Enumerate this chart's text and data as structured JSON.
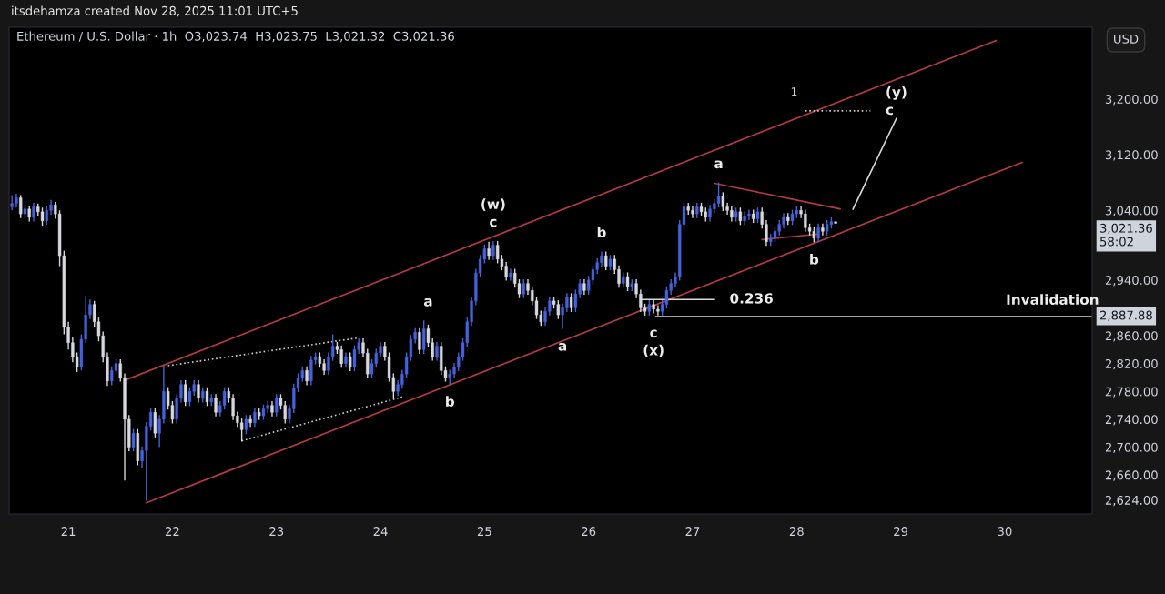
{
  "chart_data": {
    "type": "candlestick",
    "title": "itsdehamza created Nov 28, 2025 11:01 UTC+5",
    "subtitle": "Ethereum / U.S. Dollar · 1h  O3,023.74  H3,023.75  L3,021.32  C3,021.36",
    "series": [
      {
        "type": "candlestick",
        "x": [
          "2025-11-20T11:00",
          "2025-11-20T12:00",
          "2025-11-20T13:00",
          "2025-11-20T14:00",
          "2025-11-20T15:00",
          "2025-11-20T16:00",
          "2025-11-20T17:00",
          "2025-11-20T18:00",
          "2025-11-20T19:00",
          "2025-11-20T20:00",
          "2025-11-20T21:00",
          "2025-11-20T22:00",
          "2025-11-20T23:00",
          "2025-11-21T00:00",
          "2025-11-21T01:00",
          "2025-11-21T02:00",
          "2025-11-21T03:00",
          "2025-11-21T04:00",
          "2025-11-21T05:00",
          "2025-11-21T06:00",
          "2025-11-21T07:00",
          "2025-11-21T08:00",
          "2025-11-21T09:00",
          "2025-11-21T10:00",
          "2025-11-21T11:00",
          "2025-11-21T12:00",
          "2025-11-21T13:00",
          "2025-11-21T14:00",
          "2025-11-21T15:00",
          "2025-11-21T16:00",
          "2025-11-21T17:00",
          "2025-11-21T18:00",
          "2025-11-21T19:00",
          "2025-11-21T20:00",
          "2025-11-21T21:00",
          "2025-11-21T22:00",
          "2025-11-21T23:00",
          "2025-11-22T00:00",
          "2025-11-22T01:00",
          "2025-11-22T02:00",
          "2025-11-22T03:00",
          "2025-11-22T04:00",
          "2025-11-22T05:00",
          "2025-11-22T06:00",
          "2025-11-22T07:00",
          "2025-11-22T08:00",
          "2025-11-22T09:00",
          "2025-11-22T10:00",
          "2025-11-22T11:00",
          "2025-11-22T12:00",
          "2025-11-22T13:00",
          "2025-11-22T14:00",
          "2025-11-22T15:00",
          "2025-11-22T16:00",
          "2025-11-22T17:00",
          "2025-11-22T18:00",
          "2025-11-22T19:00",
          "2025-11-22T20:00",
          "2025-11-22T21:00",
          "2025-11-22T22:00",
          "2025-11-22T23:00",
          "2025-11-23T00:00",
          "2025-11-23T01:00",
          "2025-11-23T02:00",
          "2025-11-23T03:00",
          "2025-11-23T04:00",
          "2025-11-23T05:00",
          "2025-11-23T06:00",
          "2025-11-23T07:00",
          "2025-11-23T08:00",
          "2025-11-23T09:00",
          "2025-11-23T10:00",
          "2025-11-23T11:00",
          "2025-11-23T12:00",
          "2025-11-23T13:00",
          "2025-11-23T14:00",
          "2025-11-23T15:00",
          "2025-11-23T16:00",
          "2025-11-23T17:00",
          "2025-11-23T18:00",
          "2025-11-23T19:00",
          "2025-11-23T20:00",
          "2025-11-23T21:00",
          "2025-11-23T22:00",
          "2025-11-23T23:00",
          "2025-11-24T00:00",
          "2025-11-24T01:00",
          "2025-11-24T02:00",
          "2025-11-24T03:00",
          "2025-11-24T04:00",
          "2025-11-24T05:00",
          "2025-11-24T06:00",
          "2025-11-24T07:00",
          "2025-11-24T08:00",
          "2025-11-24T09:00",
          "2025-11-24T10:00",
          "2025-11-24T11:00",
          "2025-11-24T12:00",
          "2025-11-24T13:00",
          "2025-11-24T14:00",
          "2025-11-24T15:00",
          "2025-11-24T16:00",
          "2025-11-24T17:00",
          "2025-11-24T18:00",
          "2025-11-24T19:00",
          "2025-11-24T20:00",
          "2025-11-24T21:00",
          "2025-11-24T22:00",
          "2025-11-24T23:00",
          "2025-11-25T00:00",
          "2025-11-25T01:00",
          "2025-11-25T02:00",
          "2025-11-25T03:00",
          "2025-11-25T04:00",
          "2025-11-25T05:00",
          "2025-11-25T06:00",
          "2025-11-25T07:00",
          "2025-11-25T08:00",
          "2025-11-25T09:00",
          "2025-11-25T10:00",
          "2025-11-25T11:00",
          "2025-11-25T12:00",
          "2025-11-25T13:00",
          "2025-11-25T14:00",
          "2025-11-25T15:00",
          "2025-11-25T16:00",
          "2025-11-25T17:00",
          "2025-11-25T18:00",
          "2025-11-25T19:00",
          "2025-11-25T20:00",
          "2025-11-25T21:00",
          "2025-11-25T22:00",
          "2025-11-25T23:00",
          "2025-11-26T00:00",
          "2025-11-26T01:00",
          "2025-11-26T02:00",
          "2025-11-26T03:00",
          "2025-11-26T04:00",
          "2025-11-26T05:00",
          "2025-11-26T06:00",
          "2025-11-26T07:00",
          "2025-11-26T08:00",
          "2025-11-26T09:00",
          "2025-11-26T10:00",
          "2025-11-26T11:00",
          "2025-11-26T12:00",
          "2025-11-26T13:00",
          "2025-11-26T14:00",
          "2025-11-26T15:00",
          "2025-11-26T16:00",
          "2025-11-26T17:00",
          "2025-11-26T18:00",
          "2025-11-26T19:00",
          "2025-11-26T20:00",
          "2025-11-26T21:00",
          "2025-11-26T22:00",
          "2025-11-26T23:00",
          "2025-11-27T00:00",
          "2025-11-27T01:00",
          "2025-11-27T02:00",
          "2025-11-27T03:00",
          "2025-11-27T04:00",
          "2025-11-27T05:00",
          "2025-11-27T06:00",
          "2025-11-27T07:00",
          "2025-11-27T08:00",
          "2025-11-27T09:00",
          "2025-11-27T10:00",
          "2025-11-27T11:00",
          "2025-11-27T12:00",
          "2025-11-27T13:00",
          "2025-11-27T14:00",
          "2025-11-27T15:00",
          "2025-11-27T16:00",
          "2025-11-27T17:00",
          "2025-11-27T18:00",
          "2025-11-27T19:00",
          "2025-11-27T20:00",
          "2025-11-27T21:00",
          "2025-11-27T22:00",
          "2025-11-27T23:00",
          "2025-11-28T00:00",
          "2025-11-28T01:00",
          "2025-11-28T02:00",
          "2025-11-28T03:00",
          "2025-11-28T04:00",
          "2025-11-28T05:00",
          "2025-11-28T06:00",
          "2025-11-28T07:00",
          "2025-11-28T08:00",
          "2025-11-28T09:00"
        ],
        "ohlc": [
          [
            3045,
            3062,
            3040,
            3050
          ],
          [
            3050,
            3064,
            3044,
            3058
          ],
          [
            3058,
            3062,
            3029,
            3035
          ],
          [
            3035,
            3048,
            3029,
            3042
          ],
          [
            3042,
            3047,
            3024,
            3030
          ],
          [
            3030,
            3051,
            3024,
            3045
          ],
          [
            3045,
            3050,
            3032,
            3038
          ],
          [
            3038,
            3044,
            3018,
            3025
          ],
          [
            3025,
            3046,
            3019,
            3040
          ],
          [
            3040,
            3055,
            3034,
            3048
          ],
          [
            3048,
            3052,
            3028,
            3035
          ],
          [
            3035,
            3040,
            2960,
            2975
          ],
          [
            2975,
            2982,
            2862,
            2872
          ],
          [
            2872,
            2880,
            2840,
            2850
          ],
          [
            2850,
            2858,
            2822,
            2830
          ],
          [
            2830,
            2836,
            2808,
            2815
          ],
          [
            2815,
            2862,
            2810,
            2855
          ],
          [
            2855,
            2917,
            2850,
            2890
          ],
          [
            2890,
            2912,
            2884,
            2905
          ],
          [
            2905,
            2910,
            2872,
            2880
          ],
          [
            2880,
            2886,
            2852,
            2860
          ],
          [
            2860,
            2866,
            2822,
            2830
          ],
          [
            2830,
            2836,
            2788,
            2795
          ],
          [
            2795,
            2816,
            2789,
            2810
          ],
          [
            2810,
            2826,
            2804,
            2820
          ],
          [
            2820,
            2826,
            2794,
            2800
          ],
          [
            2800,
            2806,
            2652,
            2740
          ],
          [
            2740,
            2746,
            2694,
            2700
          ],
          [
            2700,
            2726,
            2694,
            2720
          ],
          [
            2720,
            2726,
            2674,
            2680
          ],
          [
            2680,
            2701,
            2670,
            2695
          ],
          [
            2695,
            2736,
            2623,
            2730
          ],
          [
            2730,
            2756,
            2724,
            2750
          ],
          [
            2750,
            2756,
            2714,
            2720
          ],
          [
            2720,
            2746,
            2700,
            2740
          ],
          [
            2740,
            2817,
            2734,
            2780
          ],
          [
            2780,
            2786,
            2754,
            2760
          ],
          [
            2760,
            2766,
            2734,
            2740
          ],
          [
            2740,
            2776,
            2734,
            2770
          ],
          [
            2770,
            2796,
            2764,
            2790
          ],
          [
            2790,
            2796,
            2759,
            2765
          ],
          [
            2765,
            2786,
            2759,
            2780
          ],
          [
            2780,
            2796,
            2774,
            2790
          ],
          [
            2790,
            2796,
            2764,
            2770
          ],
          [
            2770,
            2786,
            2764,
            2780
          ],
          [
            2780,
            2786,
            2759,
            2765
          ],
          [
            2765,
            2776,
            2759,
            2770
          ],
          [
            2770,
            2776,
            2744,
            2750
          ],
          [
            2750,
            2766,
            2744,
            2760
          ],
          [
            2760,
            2786,
            2754,
            2780
          ],
          [
            2780,
            2786,
            2764,
            2770
          ],
          [
            2770,
            2776,
            2739,
            2745
          ],
          [
            2745,
            2751,
            2729,
            2735
          ],
          [
            2735,
            2741,
            2708,
            2725
          ],
          [
            2725,
            2746,
            2719,
            2740
          ],
          [
            2740,
            2746,
            2729,
            2735
          ],
          [
            2735,
            2756,
            2729,
            2750
          ],
          [
            2750,
            2756,
            2739,
            2745
          ],
          [
            2745,
            2761,
            2739,
            2755
          ],
          [
            2755,
            2766,
            2749,
            2760
          ],
          [
            2760,
            2766,
            2744,
            2750
          ],
          [
            2750,
            2776,
            2744,
            2770
          ],
          [
            2770,
            2776,
            2754,
            2760
          ],
          [
            2760,
            2766,
            2734,
            2740
          ],
          [
            2740,
            2761,
            2734,
            2755
          ],
          [
            2755,
            2791,
            2749,
            2785
          ],
          [
            2785,
            2806,
            2779,
            2800
          ],
          [
            2800,
            2816,
            2794,
            2810
          ],
          [
            2810,
            2816,
            2789,
            2795
          ],
          [
            2795,
            2831,
            2789,
            2825
          ],
          [
            2825,
            2836,
            2819,
            2830
          ],
          [
            2830,
            2836,
            2814,
            2820
          ],
          [
            2820,
            2826,
            2804,
            2810
          ],
          [
            2810,
            2836,
            2804,
            2830
          ],
          [
            2830,
            2862,
            2824,
            2845
          ],
          [
            2845,
            2851,
            2834,
            2840
          ],
          [
            2840,
            2846,
            2814,
            2820
          ],
          [
            2820,
            2836,
            2814,
            2830
          ],
          [
            2830,
            2836,
            2809,
            2815
          ],
          [
            2815,
            2846,
            2809,
            2840
          ],
          [
            2840,
            2856,
            2834,
            2850
          ],
          [
            2850,
            2856,
            2829,
            2835
          ],
          [
            2835,
            2841,
            2799,
            2805
          ],
          [
            2805,
            2826,
            2799,
            2820
          ],
          [
            2820,
            2841,
            2814,
            2835
          ],
          [
            2835,
            2851,
            2829,
            2845
          ],
          [
            2845,
            2851,
            2824,
            2830
          ],
          [
            2830,
            2836,
            2794,
            2800
          ],
          [
            2800,
            2806,
            2770,
            2780
          ],
          [
            2780,
            2796,
            2774,
            2790
          ],
          [
            2790,
            2811,
            2784,
            2805
          ],
          [
            2805,
            2836,
            2799,
            2830
          ],
          [
            2830,
            2861,
            2824,
            2855
          ],
          [
            2855,
            2871,
            2849,
            2865
          ],
          [
            2865,
            2871,
            2834,
            2840
          ],
          [
            2840,
            2882,
            2834,
            2870
          ],
          [
            2870,
            2876,
            2844,
            2850
          ],
          [
            2850,
            2856,
            2824,
            2830
          ],
          [
            2830,
            2851,
            2824,
            2845
          ],
          [
            2845,
            2851,
            2804,
            2810
          ],
          [
            2810,
            2816,
            2794,
            2800
          ],
          [
            2800,
            2811,
            2790,
            2805
          ],
          [
            2805,
            2821,
            2799,
            2815
          ],
          [
            2815,
            2836,
            2809,
            2830
          ],
          [
            2830,
            2856,
            2824,
            2850
          ],
          [
            2850,
            2886,
            2844,
            2880
          ],
          [
            2880,
            2916,
            2874,
            2910
          ],
          [
            2910,
            2956,
            2904,
            2950
          ],
          [
            2950,
            2976,
            2944,
            2970
          ],
          [
            2970,
            2991,
            2964,
            2985
          ],
          [
            2985,
            2995,
            2969,
            2975
          ],
          [
            2975,
            2996,
            2969,
            2990
          ],
          [
            2990,
            2996,
            2964,
            2970
          ],
          [
            2970,
            2976,
            2954,
            2960
          ],
          [
            2960,
            2966,
            2939,
            2945
          ],
          [
            2945,
            2956,
            2939,
            2950
          ],
          [
            2950,
            2956,
            2929,
            2935
          ],
          [
            2935,
            2941,
            2914,
            2920
          ],
          [
            2920,
            2941,
            2914,
            2935
          ],
          [
            2935,
            2941,
            2919,
            2925
          ],
          [
            2925,
            2931,
            2904,
            2910
          ],
          [
            2910,
            2916,
            2884,
            2890
          ],
          [
            2890,
            2896,
            2874,
            2880
          ],
          [
            2880,
            2901,
            2874,
            2895
          ],
          [
            2895,
            2916,
            2889,
            2910
          ],
          [
            2910,
            2916,
            2899,
            2905
          ],
          [
            2905,
            2911,
            2884,
            2890
          ],
          [
            2890,
            2906,
            2870,
            2900
          ],
          [
            2900,
            2921,
            2894,
            2915
          ],
          [
            2915,
            2921,
            2894,
            2900
          ],
          [
            2900,
            2926,
            2894,
            2920
          ],
          [
            2920,
            2941,
            2914,
            2935
          ],
          [
            2935,
            2941,
            2919,
            2925
          ],
          [
            2925,
            2946,
            2919,
            2940
          ],
          [
            2940,
            2961,
            2934,
            2955
          ],
          [
            2955,
            2971,
            2949,
            2965
          ],
          [
            2965,
            2981,
            2959,
            2975
          ],
          [
            2975,
            2981,
            2954,
            2960
          ],
          [
            2960,
            2976,
            2954,
            2970
          ],
          [
            2970,
            2976,
            2949,
            2955
          ],
          [
            2955,
            2961,
            2929,
            2935
          ],
          [
            2935,
            2951,
            2929,
            2945
          ],
          [
            2945,
            2951,
            2924,
            2930
          ],
          [
            2930,
            2941,
            2924,
            2935
          ],
          [
            2935,
            2941,
            2914,
            2920
          ],
          [
            2920,
            2926,
            2894,
            2900
          ],
          [
            2900,
            2906,
            2889,
            2895
          ],
          [
            2895,
            2911,
            2889,
            2905
          ],
          [
            2905,
            2911,
            2892,
            2898
          ],
          [
            2898,
            2904,
            2889,
            2895
          ],
          [
            2895,
            2911,
            2889,
            2905
          ],
          [
            2905,
            2931,
            2899,
            2925
          ],
          [
            2925,
            2941,
            2919,
            2935
          ],
          [
            2935,
            2951,
            2929,
            2945
          ],
          [
            2945,
            3026,
            2939,
            3020
          ],
          [
            3020,
            3051,
            3014,
            3045
          ],
          [
            3045,
            3051,
            3034,
            3040
          ],
          [
            3040,
            3046,
            3029,
            3035
          ],
          [
            3035,
            3051,
            3029,
            3045
          ],
          [
            3045,
            3051,
            3032,
            3038
          ],
          [
            3038,
            3044,
            3024,
            3030
          ],
          [
            3030,
            3048,
            3024,
            3042
          ],
          [
            3042,
            3056,
            3036,
            3050
          ],
          [
            3050,
            3080,
            3044,
            3060
          ],
          [
            3060,
            3066,
            3039,
            3045
          ],
          [
            3045,
            3051,
            3034,
            3040
          ],
          [
            3040,
            3046,
            3024,
            3030
          ],
          [
            3030,
            3044,
            3024,
            3038
          ],
          [
            3038,
            3044,
            3019,
            3025
          ],
          [
            3025,
            3038,
            3019,
            3032
          ],
          [
            3032,
            3041,
            3026,
            3035
          ],
          [
            3035,
            3041,
            3022,
            3028
          ],
          [
            3028,
            3044,
            3022,
            3038
          ],
          [
            3038,
            3044,
            3014,
            3020
          ],
          [
            3020,
            3026,
            2989,
            2995
          ],
          [
            2995,
            3006,
            2989,
            3000
          ],
          [
            3000,
            3016,
            2994,
            3010
          ],
          [
            3010,
            3026,
            3004,
            3020
          ],
          [
            3020,
            3036,
            3014,
            3030
          ],
          [
            3030,
            3036,
            3019,
            3025
          ],
          [
            3025,
            3041,
            3019,
            3035
          ],
          [
            3035,
            3046,
            3029,
            3040
          ],
          [
            3040,
            3046,
            3029,
            3035
          ],
          [
            3035,
            3041,
            3009,
            3015
          ],
          [
            3015,
            3021,
            3004,
            3010
          ],
          [
            3010,
            3016,
            2994,
            3000
          ],
          [
            3000,
            3021,
            2994,
            3015
          ],
          [
            3015,
            3021,
            3004,
            3010
          ],
          [
            3010,
            3026,
            3004,
            3020
          ],
          [
            3020,
            3030,
            3014,
            3023.74
          ],
          [
            3023.74,
            3023.75,
            3021.32,
            3021.36
          ]
        ]
      },
      {
        "type": "line",
        "x": [
          "2025-11-21T13:00",
          "2025-11-29T22:00"
        ],
        "values": [
          2796,
          3284
        ],
        "color": "#b73a44",
        "line_style": "solid"
      },
      {
        "type": "line",
        "x": [
          "2025-11-21T18:00",
          "2025-11-30T04:00"
        ],
        "values": [
          2620,
          3109
        ],
        "color": "#b73a44",
        "line_style": "solid"
      },
      {
        "type": "line",
        "x": [
          "2025-11-27T05:00",
          "2025-11-28T10:00"
        ],
        "values": [
          3079,
          3042
        ],
        "color": "#b73a44",
        "line_style": "solid"
      },
      {
        "type": "line",
        "x": [
          "2025-11-27T16:00",
          "2025-11-28T05:00"
        ],
        "values": [
          2998,
          3006
        ],
        "color": "#b73a44",
        "line_style": "solid"
      },
      {
        "type": "line",
        "x": [
          "2025-11-21T23:00",
          "2025-11-23T19:00"
        ],
        "values": [
          2817,
          2857
        ],
        "color": "#c8c8c8",
        "line_style": "dotted"
      },
      {
        "type": "line",
        "x": [
          "2025-11-22T16:00",
          "2025-11-24T05:00"
        ],
        "values": [
          2709,
          2772
        ],
        "color": "#c8c8c8",
        "line_style": "dotted"
      },
      {
        "type": "line",
        "x": [
          "2025-11-28T02:00",
          "2025-11-28T17:00"
        ],
        "values": [
          3183,
          3183
        ],
        "color": "#c8c8c8",
        "line_style": "dotted"
      },
      {
        "type": "line",
        "x": [
          "2025-11-26T12:00",
          "2025-11-27T05:00"
        ],
        "values": [
          2912,
          2912
        ],
        "color": "#d8d8d8",
        "line_style": "solid"
      },
      {
        "type": "line",
        "x": [
          "2025-11-26T15:30",
          "2025-11-30T20:10"
        ],
        "values": [
          2887.88,
          2887.88
        ],
        "color": "#a0a0a0",
        "line_style": "solid"
      },
      {
        "type": "line",
        "x": [
          "2025-11-28T13:00",
          "2025-11-28T23:00"
        ],
        "values": [
          3042,
          3172
        ],
        "color": "#d8d8d8",
        "line_style": "solid"
      }
    ],
    "annotations": [
      {
        "text": "c",
        "x": "2025-11-25T02:00",
        "y": 2996
      },
      {
        "text": "(w)",
        "x": "2025-11-25T02:00",
        "y": 2996
      },
      {
        "text": "a",
        "x": "2025-11-24T11:00",
        "y": 2882
      },
      {
        "text": "b",
        "x": "2025-11-24T16:00",
        "y": 2790
      },
      {
        "text": "a",
        "x": "2025-11-25T18:00",
        "y": 2870
      },
      {
        "text": "b",
        "x": "2025-11-26T03:00",
        "y": 2981
      },
      {
        "text": "c",
        "x": "2025-11-26T15:00",
        "y": 2889
      },
      {
        "text": "(x)",
        "x": "2025-11-26T15:00",
        "y": 2889
      },
      {
        "text": "a",
        "x": "2025-11-27T06:00",
        "y": 3080
      },
      {
        "text": "b",
        "x": "2025-11-28T04:00",
        "y": 2994
      },
      {
        "text": "c",
        "x": "2025-11-28T17:00",
        "y": 3183
      },
      {
        "text": "(y)",
        "x": "2025-11-28T17:00",
        "y": 3183
      },
      {
        "text": "1",
        "x": "2025-11-28T02:00",
        "y": 3183
      },
      {
        "text": "0.236",
        "x": "2025-11-27T05:00",
        "y": 2912
      },
      {
        "text": "Invalidation",
        "x": "2025-11-30T11:00",
        "y": 2887.88
      },
      {
        "text": "2,887.88",
        "x": "2025-11-30T20:10",
        "y": 2887.88
      },
      "3,021.36\n58:02",
      "USD"
    ],
    "xlim": [
      "2025-11-20T10:20",
      "2025-11-30T20:10"
    ],
    "xticks": [
      {
        "value": "2025-11-21",
        "label": "21"
      },
      {
        "value": "2025-11-22",
        "label": "22"
      },
      {
        "value": "2025-11-23",
        "label": "23"
      },
      {
        "value": "2025-11-24",
        "label": "24"
      },
      {
        "value": "2025-11-25",
        "label": "25"
      },
      {
        "value": "2025-11-26",
        "label": "26"
      },
      {
        "value": "2025-11-27",
        "label": "27"
      },
      {
        "value": "2025-11-28",
        "label": "28"
      },
      {
        "value": "2025-11-29",
        "label": "29"
      },
      {
        "value": "2025-11-30",
        "label": "30"
      }
    ],
    "ylim": [
      2604,
      3303
    ],
    "yticks": [
      {
        "value": 3200,
        "label": "3,200.00"
      },
      {
        "value": 3120,
        "label": "3,120.00"
      },
      {
        "value": 3040,
        "label": "3,040.00"
      },
      {
        "value": 2940,
        "label": "2,940.00"
      },
      {
        "value": 2860,
        "label": "2,860.00"
      },
      {
        "value": 2820,
        "label": "2,820.00"
      },
      {
        "value": 2780,
        "label": "2,780.00"
      },
      {
        "value": 2740,
        "label": "2,740.00"
      },
      {
        "value": 2700,
        "label": "2,700.00"
      },
      {
        "value": 2660,
        "label": "2,660.00"
      },
      {
        "value": 2624,
        "label": "2,624.00"
      }
    ],
    "grid": false
  }
}
